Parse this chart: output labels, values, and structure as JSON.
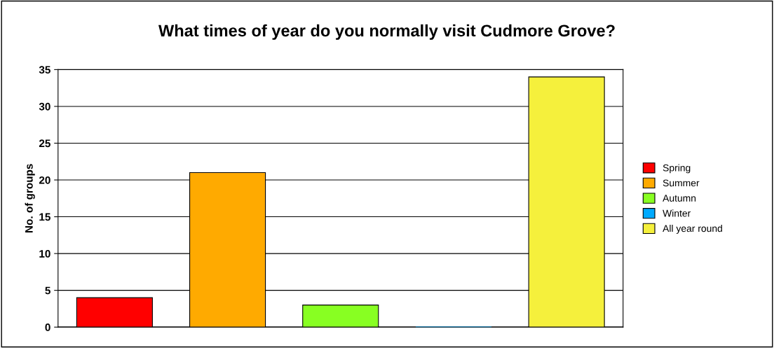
{
  "chart_data": {
    "type": "bar",
    "title": "What times of year do you normally visit Cudmore Grove?",
    "ylabel": "No. of groups",
    "categories": [
      null,
      null,
      null,
      null,
      null
    ],
    "series": [
      {
        "name": "Spring",
        "color": "#ff0000",
        "values": [
          4,
          null,
          null,
          null,
          null
        ]
      },
      {
        "name": "Summer",
        "color": "#ffaa00",
        "values": [
          null,
          21,
          null,
          null,
          null
        ]
      },
      {
        "name": "Autumn",
        "color": "#88ff22",
        "values": [
          null,
          null,
          3,
          null,
          null
        ]
      },
      {
        "name": "Winter",
        "color": "#00aaff",
        "values": [
          null,
          null,
          null,
          0,
          null
        ]
      },
      {
        "name": "All year round",
        "color": "#f5f03c",
        "values": [
          null,
          null,
          null,
          null,
          34
        ]
      }
    ],
    "ylim": [
      0,
      35
    ],
    "yticks": [
      0,
      5,
      10,
      15,
      20,
      25,
      30,
      35
    ],
    "grid": "y",
    "legend": "right"
  }
}
